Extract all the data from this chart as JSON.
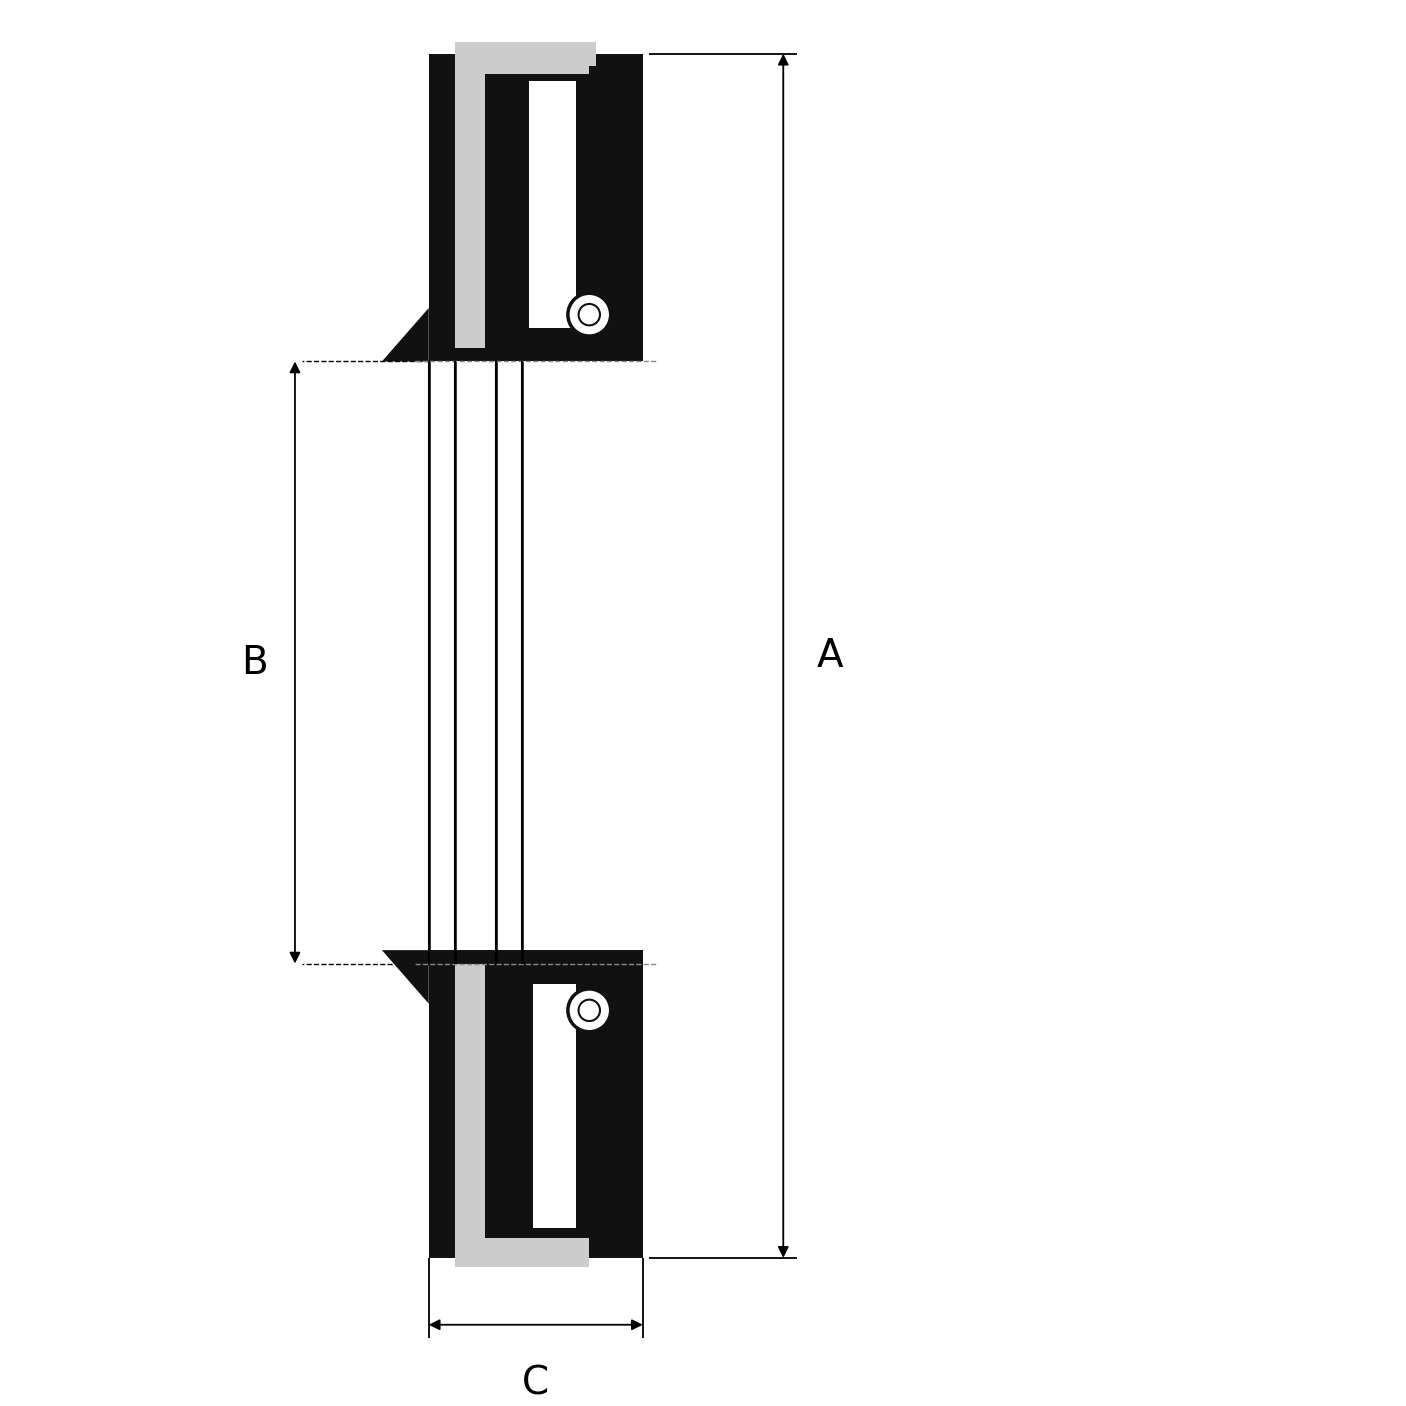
{
  "bg_color": "#ffffff",
  "fill_black": "#111111",
  "fill_gray": "#cccccc",
  "figsize": [
    14.06,
    14.06
  ],
  "dpi": 100,
  "label_A": "A",
  "label_B": "B",
  "label_C": "C"
}
